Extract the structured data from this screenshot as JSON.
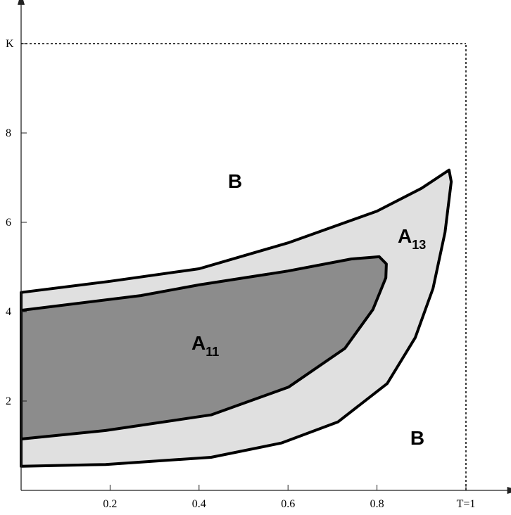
{
  "chart_data": {
    "type": "region",
    "xlim": [
      0,
      1.08
    ],
    "ylim": [
      0,
      10.9
    ],
    "xticks": [
      0.2,
      0.4,
      0.6,
      0.8,
      {
        "value": 1,
        "label": "T=1"
      }
    ],
    "yticks": [
      2,
      4,
      6,
      8,
      {
        "value": 10,
        "label": "K"
      }
    ],
    "regions": [
      {
        "label": "A",
        "subscript": "13",
        "color": "#e0e0e0",
        "x": [
          0,
          0.2,
          0.4,
          0.6,
          0.8,
          0.9,
          0.962,
          0.967,
          0.953,
          0.926,
          0.886,
          0.823,
          0.712,
          0.585,
          0.427,
          0.19,
          0
        ],
        "y": [
          4.43,
          4.68,
          4.96,
          5.54,
          6.25,
          6.76,
          7.17,
          6.91,
          5.78,
          4.52,
          3.42,
          2.39,
          1.53,
          1.06,
          0.74,
          0.58,
          0.54
        ]
      },
      {
        "label": "A",
        "subscript": "11",
        "color": "#8c8c8c",
        "x": [
          0,
          0.269,
          0.4,
          0.6,
          0.742,
          0.805,
          0.821,
          0.82,
          0.791,
          0.728,
          0.601,
          0.427,
          0.19,
          0
        ],
        "y": [
          4.03,
          4.36,
          4.6,
          4.91,
          5.18,
          5.23,
          5.07,
          4.76,
          4.05,
          3.18,
          2.31,
          1.69,
          1.34,
          1.15
        ]
      }
    ],
    "annotations": [
      "B",
      "B"
    ]
  }
}
